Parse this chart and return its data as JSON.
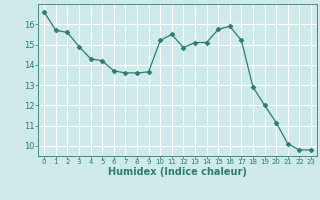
{
  "x": [
    0,
    1,
    2,
    3,
    4,
    5,
    6,
    7,
    8,
    9,
    10,
    11,
    12,
    13,
    14,
    15,
    16,
    17,
    18,
    19,
    20,
    21,
    22,
    23
  ],
  "y": [
    16.6,
    15.7,
    15.6,
    14.9,
    14.3,
    14.2,
    13.7,
    13.6,
    13.6,
    13.65,
    15.2,
    15.5,
    14.85,
    15.1,
    15.1,
    15.75,
    15.9,
    15.2,
    12.9,
    12.0,
    11.15,
    10.1,
    9.8,
    9.8
  ],
  "line_color": "#2e7d6e",
  "marker": "D",
  "marker_size": 2.5,
  "bg_color": "#ceeaea",
  "grid_color": "#ffffff",
  "xlabel": "Humidex (Indice chaleur)",
  "xlim": [
    -0.5,
    23.5
  ],
  "ylim": [
    9.5,
    17.0
  ],
  "yticks": [
    10,
    11,
    12,
    13,
    14,
    15,
    16
  ],
  "xticks": [
    0,
    1,
    2,
    3,
    4,
    5,
    6,
    7,
    8,
    9,
    10,
    11,
    12,
    13,
    14,
    15,
    16,
    17,
    18,
    19,
    20,
    21,
    22,
    23
  ],
  "axis_color": "#2e7d6e",
  "tick_color": "#2e7d6e",
  "label_color": "#2e7d6e",
  "xlabel_fontsize": 7.0,
  "xtick_fontsize": 5.0,
  "ytick_fontsize": 6.0
}
